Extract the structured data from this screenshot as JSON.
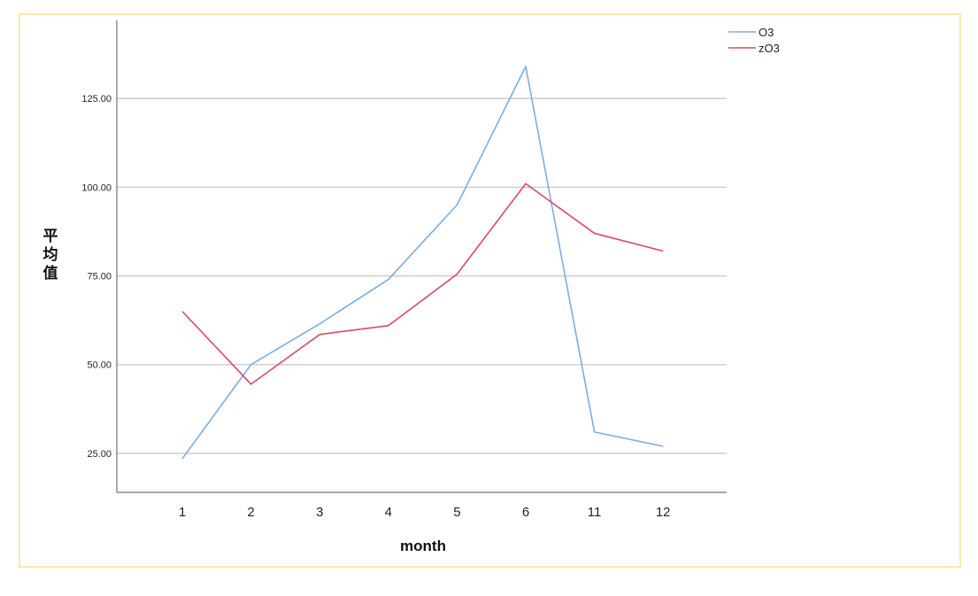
{
  "chart_data": {
    "type": "line",
    "categories": [
      "1",
      "2",
      "3",
      "4",
      "5",
      "6",
      "11",
      "12"
    ],
    "series": [
      {
        "name": "O3",
        "color": "#7aaee0",
        "values": [
          23.5,
          50.0,
          61.5,
          74.0,
          95.0,
          134.0,
          31.0,
          27.0
        ]
      },
      {
        "name": "zO3",
        "color": "#e0456a",
        "values": [
          65.0,
          44.5,
          58.5,
          61.0,
          75.5,
          101.0,
          87.0,
          82.0
        ]
      }
    ],
    "xlabel": "month",
    "ylabel": "平均值",
    "ylim": [
      14,
      147
    ],
    "yticks": [
      25,
      50,
      75,
      100,
      125
    ],
    "ytick_labels": [
      "25.00",
      "50.00",
      "75.00",
      "100.00",
      "125.00"
    ],
    "grid": true,
    "legend_position": "top-right"
  }
}
